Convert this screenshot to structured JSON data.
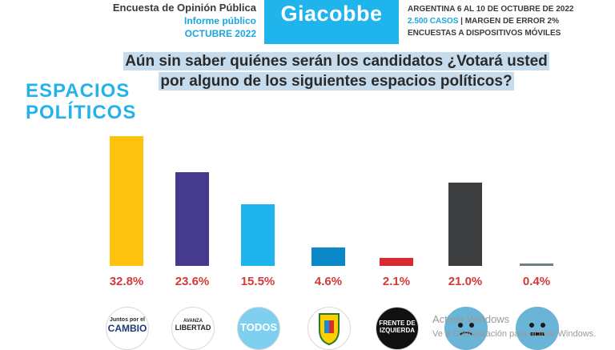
{
  "header": {
    "left_line1": "Encuesta de Opinión Pública",
    "left_line2": "Informe público",
    "left_line3": "OCTUBRE 2022",
    "brand": "Giacobbe",
    "right_line1": "ARGENTINA 6 AL 10 DE OCTUBRE DE 2022",
    "right_line2_a": "2.500 CASOS",
    "right_line2_b": " | MARGEN DE ERROR 2%",
    "right_line3": "ENCUESTAS A DISPOSITIVOS MÓVILES"
  },
  "question_line1": "Aún sin saber quiénes serán los candidatos ¿Votará usted",
  "question_line2": "por alguno de los siguientes espacios políticos?",
  "section_title_line1": "ESPACIOS",
  "section_title_line2": "POLÍTICOS",
  "chart_data": {
    "type": "bar",
    "ylim": [
      0,
      35
    ],
    "grid": false,
    "categories": [
      "Juntos por el Cambio",
      "Avanza Libertad",
      "Frente de Todos",
      "Peronismo",
      "Frente de Izquierda",
      "Ninguno",
      "No sabe"
    ],
    "values": [
      32.8,
      23.6,
      15.5,
      4.6,
      2.1,
      21.0,
      0.4
    ],
    "labels": [
      "32.8%",
      "23.6%",
      "15.5%",
      "4.6%",
      "2.1%",
      "21.0%",
      "0.4%"
    ],
    "colors": [
      "#fdc20e",
      "#463a8c",
      "#20b4ec",
      "#0a88c8",
      "#d92a2f",
      "#3d3e40",
      "#6e7f8c"
    ]
  },
  "logos": [
    {
      "name": "juntos-por-el-cambio-logo",
      "l1": "Juntos por el",
      "l2": "CAMBIO"
    },
    {
      "name": "avanza-libertad-logo",
      "l1": "AVANZA",
      "l2": "LIBERTAD"
    },
    {
      "name": "frente-de-todos-logo",
      "l1": "TODOS",
      "l2": ""
    },
    {
      "name": "peronismo-shield-logo",
      "l1": "",
      "l2": ""
    },
    {
      "name": "frente-de-izquierda-logo",
      "l1": "FRENTE DE",
      "l2": "IZQUIERDA"
    },
    {
      "name": "ninguno-face-icon",
      "l1": "",
      "l2": ""
    },
    {
      "name": "no-sabe-face-icon",
      "l1": "",
      "l2": ""
    }
  ],
  "watermark_line1": "Activar Windows",
  "watermark_line2": "Ve a Configuración para activar Windows."
}
